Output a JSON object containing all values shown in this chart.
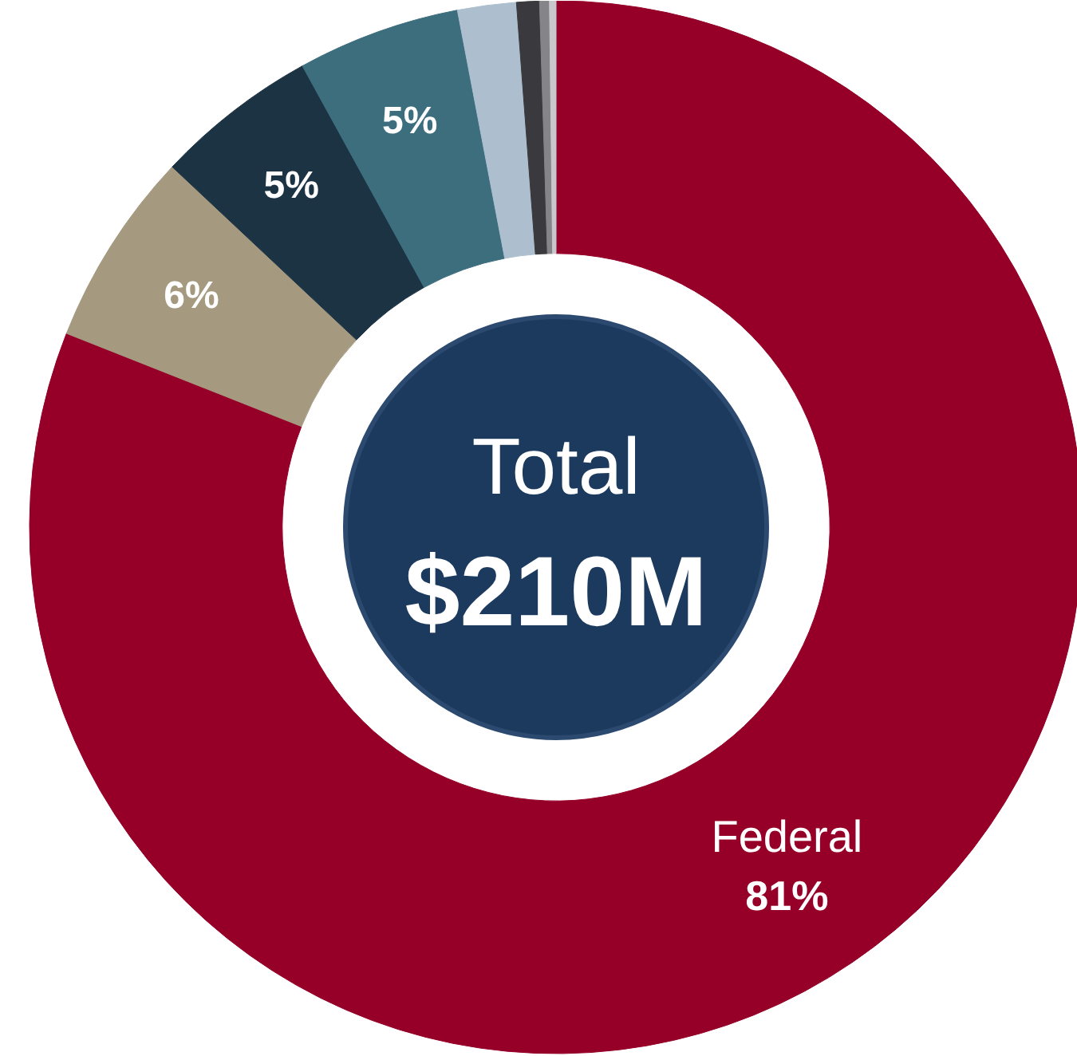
{
  "chart_data": {
    "type": "donut",
    "categories": [
      "Federal",
      null,
      null,
      null,
      null,
      null,
      null,
      null
    ],
    "values": [
      81,
      6,
      5,
      5,
      1.8,
      0.7,
      0.3,
      0.2
    ],
    "colors": [
      "#960028",
      "#a59a80",
      "#1c3344",
      "#3d6e7e",
      "#adbfcf",
      "#3a3a3e",
      "#858589",
      "#c8c8cc"
    ],
    "value_labels": [
      "81%",
      "6%",
      "5%",
      "5%",
      null,
      null,
      null,
      null
    ],
    "annotations": [
      "Total",
      "$210M"
    ]
  }
}
